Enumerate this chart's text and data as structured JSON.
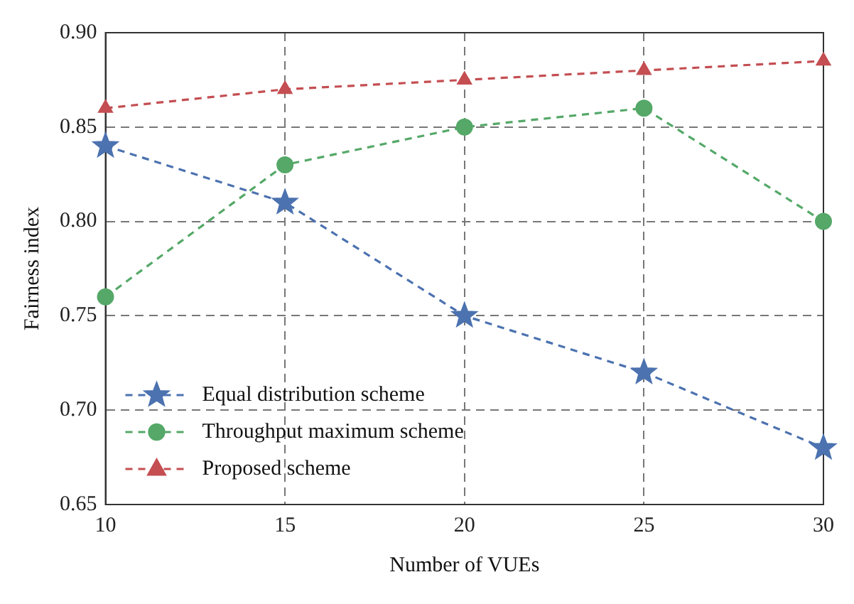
{
  "chart_data": {
    "type": "line",
    "xlabel": "Number of VUEs",
    "ylabel": "Fairness index",
    "x": [
      10,
      15,
      20,
      25,
      30
    ],
    "series": [
      {
        "name": "Equal distribution scheme",
        "color": "#4c72b0",
        "marker": "star",
        "values": [
          0.84,
          0.81,
          0.75,
          0.72,
          0.68
        ]
      },
      {
        "name": "Throughput maximum scheme",
        "color": "#55a868",
        "marker": "circle",
        "values": [
          0.76,
          0.83,
          0.85,
          0.86,
          0.8
        ]
      },
      {
        "name": "Proposed scheme",
        "color": "#c44e52",
        "marker": "triangle",
        "values": [
          0.86,
          0.87,
          0.875,
          0.88,
          0.885
        ]
      }
    ],
    "xlim": [
      10,
      30
    ],
    "xticks": [
      10,
      15,
      20,
      25,
      30
    ],
    "ylim": [
      0.65,
      0.9
    ],
    "yticks": [
      {
        "value": 0.65,
        "label": "0.65"
      },
      {
        "value": 0.7,
        "label": "0.70"
      },
      {
        "value": 0.75,
        "label": "0.75"
      },
      {
        "value": 0.8,
        "label": "0.80"
      },
      {
        "value": 0.85,
        "label": "0.85"
      },
      {
        "value": 0.9,
        "label": "0.90"
      }
    ],
    "grid": true,
    "legend": "bottom left",
    "line_style": "dashed"
  }
}
